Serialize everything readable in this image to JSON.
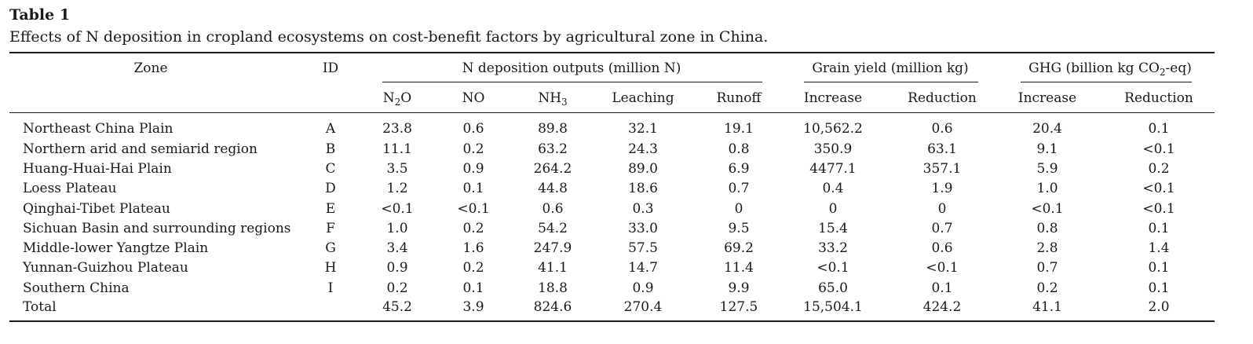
{
  "table": {
    "label": "Table 1",
    "caption": "Effects of N deposition in cropland ecosystems on cost-benefit factors by agricultural zone in China.",
    "header": {
      "zone": "Zone",
      "id": "ID",
      "group_n": "N deposition outputs (million N)",
      "group_grain": "Grain yield (million kg)",
      "group_ghg_pre": "GHG (billion kg CO",
      "group_ghg_sub": "2",
      "group_ghg_post": "-eq)",
      "n2o_pre": "N",
      "n2o_sub": "2",
      "n2o_post": "O",
      "no": "NO",
      "nh3_pre": "NH",
      "nh3_sub": "3",
      "leaching": "Leaching",
      "runoff": "Runoff",
      "grain_increase": "Increase",
      "grain_reduction": "Reduction",
      "ghg_increase": "Increase",
      "ghg_reduction": "Reduction"
    },
    "rows": [
      {
        "zone": "Northeast China Plain",
        "id": "A",
        "n2o": "23.8",
        "no": "0.6",
        "nh3": "89.8",
        "leaching": "32.1",
        "runoff": "19.1",
        "grain_inc": "10,562.2",
        "grain_red": "0.6",
        "ghg_inc": "20.4",
        "ghg_red": "0.1"
      },
      {
        "zone": "Northern arid and semiarid region",
        "id": "B",
        "n2o": "11.1",
        "no": "0.2",
        "nh3": "63.2",
        "leaching": "24.3",
        "runoff": "0.8",
        "grain_inc": "350.9",
        "grain_red": "63.1",
        "ghg_inc": "9.1",
        "ghg_red": "<0.1"
      },
      {
        "zone": "Huang-Huai-Hai Plain",
        "id": "C",
        "n2o": "3.5",
        "no": "0.9",
        "nh3": "264.2",
        "leaching": "89.0",
        "runoff": "6.9",
        "grain_inc": "4477.1",
        "grain_red": "357.1",
        "ghg_inc": "5.9",
        "ghg_red": "0.2"
      },
      {
        "zone": "Loess Plateau",
        "id": "D",
        "n2o": "1.2",
        "no": "0.1",
        "nh3": "44.8",
        "leaching": "18.6",
        "runoff": "0.7",
        "grain_inc": "0.4",
        "grain_red": "1.9",
        "ghg_inc": "1.0",
        "ghg_red": "<0.1"
      },
      {
        "zone": "Qinghai-Tibet Plateau",
        "id": "E",
        "n2o": "<0.1",
        "no": "<0.1",
        "nh3": "0.6",
        "leaching": "0.3",
        "runoff": "0",
        "grain_inc": "0",
        "grain_red": "0",
        "ghg_inc": "<0.1",
        "ghg_red": "<0.1"
      },
      {
        "zone": "Sichuan Basin and surrounding regions",
        "id": "F",
        "n2o": "1.0",
        "no": "0.2",
        "nh3": "54.2",
        "leaching": "33.0",
        "runoff": "9.5",
        "grain_inc": "15.4",
        "grain_red": "0.7",
        "ghg_inc": "0.8",
        "ghg_red": "0.1"
      },
      {
        "zone": "Middle-lower Yangtze Plain",
        "id": "G",
        "n2o": "3.4",
        "no": "1.6",
        "nh3": "247.9",
        "leaching": "57.5",
        "runoff": "69.2",
        "grain_inc": "33.2",
        "grain_red": "0.6",
        "ghg_inc": "2.8",
        "ghg_red": "1.4"
      },
      {
        "zone": "Yunnan-Guizhou Plateau",
        "id": "H",
        "n2o": "0.9",
        "no": "0.2",
        "nh3": "41.1",
        "leaching": "14.7",
        "runoff": "11.4",
        "grain_inc": "<0.1",
        "grain_red": "<0.1",
        "ghg_inc": "0.7",
        "ghg_red": "0.1"
      },
      {
        "zone": "Southern China",
        "id": "I",
        "n2o": "0.2",
        "no": "0.1",
        "nh3": "18.8",
        "leaching": "0.9",
        "runoff": "9.9",
        "grain_inc": "65.0",
        "grain_red": "0.1",
        "ghg_inc": "0.2",
        "ghg_red": "0.1"
      },
      {
        "zone": "Total",
        "id": "",
        "n2o": "45.2",
        "no": "3.9",
        "nh3": "824.6",
        "leaching": "270.4",
        "runoff": "127.5",
        "grain_inc": "15,504.1",
        "grain_red": "424.2",
        "ghg_inc": "41.1",
        "ghg_red": "2.0"
      }
    ]
  }
}
